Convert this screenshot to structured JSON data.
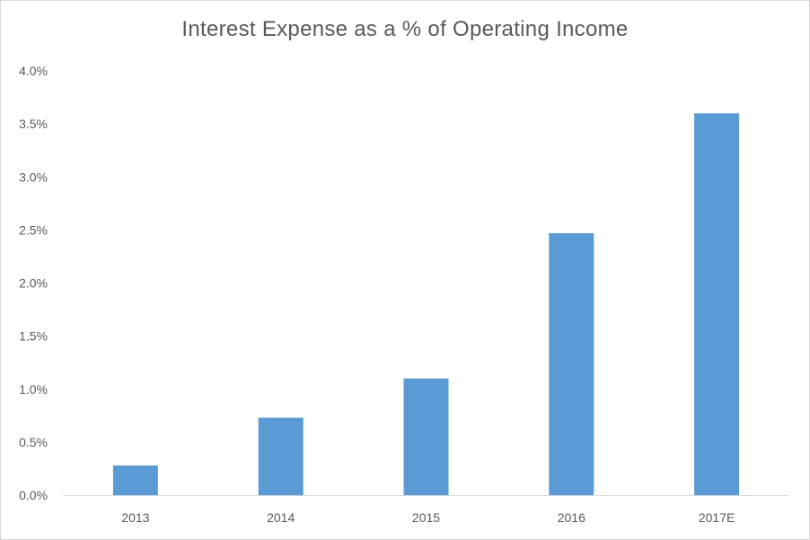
{
  "chart_data": {
    "type": "bar",
    "title": "Interest Expense as a % of Operating Income",
    "xlabel": "",
    "ylabel": "",
    "categories": [
      "2013",
      "2014",
      "2015",
      "2016",
      "2017E"
    ],
    "values": [
      0.0028,
      0.0073,
      0.011,
      0.0247,
      0.036
    ],
    "ylim": [
      0,
      0.04
    ],
    "yticks": [
      0,
      0.005,
      0.01,
      0.015,
      0.02,
      0.025,
      0.03,
      0.035,
      0.04
    ],
    "ytick_labels": [
      "0.0%",
      "0.5%",
      "1.0%",
      "1.5%",
      "2.0%",
      "2.5%",
      "3.0%",
      "3.5%",
      "4.0%"
    ],
    "grid": false,
    "legend": "none",
    "bar_color": "#5b9bd5",
    "axis_color": "#d9d9d9",
    "text_color": "#595959"
  }
}
